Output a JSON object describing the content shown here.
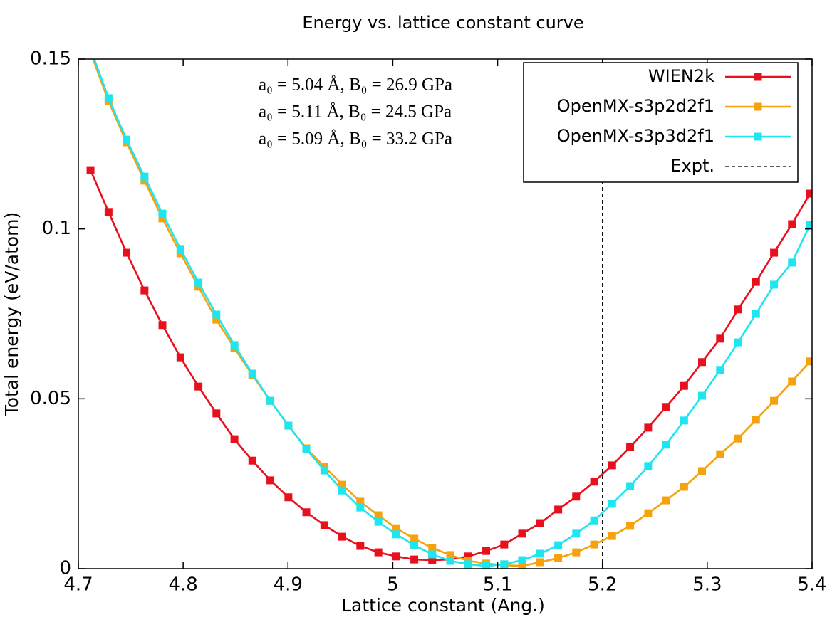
{
  "chart_data": {
    "type": "line",
    "title": "Energy vs. lattice constant curve",
    "xlabel": "Lattice constant (Ang.)",
    "ylabel": "Total energy (eV/atom)",
    "xlim": [
      4.7,
      5.4
    ],
    "ylim": [
      0,
      0.15
    ],
    "xticks": [
      4.7,
      4.8,
      4.9,
      5,
      5.1,
      5.2,
      5.3,
      5.4
    ],
    "yticks": [
      0,
      0.05,
      0.1,
      0.15
    ],
    "legend": "top right",
    "annotations": [
      "a₀ = 5.04 Å, B₀ = 26.9 GPa",
      "a₀ = 5.11 Å, B₀ = 24.5 GPa",
      "a₀ = 5.09 Å, B₀ = 33.2 GPa"
    ],
    "x": [
      4.7116,
      4.7288,
      4.7459,
      4.7631,
      4.7802,
      4.7974,
      4.8146,
      4.8317,
      4.8489,
      4.866,
      4.8832,
      4.9004,
      4.9175,
      4.9347,
      4.9518,
      4.969,
      4.9862,
      5.0033,
      5.0205,
      5.0376,
      5.0548,
      5.072,
      5.0891,
      5.1063,
      5.1234,
      5.1406,
      5.1578,
      5.1749,
      5.1921,
      5.2092,
      5.2264,
      5.2436,
      5.2607,
      5.2779,
      5.295,
      5.3122,
      5.3294,
      5.3465,
      5.3637,
      5.3808,
      5.398
    ],
    "series": [
      {
        "name": "WIEN2k",
        "color": "#e8101c",
        "values": [
          0.1173,
          0.105,
          0.093,
          0.0819,
          0.0717,
          0.0622,
          0.0536,
          0.0457,
          0.0381,
          0.0318,
          0.026,
          0.021,
          0.0166,
          0.0128,
          0.0094,
          0.0067,
          0.0048,
          0.0036,
          0.0027,
          0.0025,
          0.0027,
          0.0036,
          0.0052,
          0.0071,
          0.0103,
          0.0134,
          0.0174,
          0.0212,
          0.0256,
          0.0304,
          0.0358,
          0.0415,
          0.0476,
          0.0538,
          0.0608,
          0.0677,
          0.0763,
          0.0844,
          0.093,
          0.1014,
          0.1104
        ]
      },
      {
        "name": "OpenMX-s3p2d2f1",
        "color": "#f5a20c",
        "values": [
          0.152,
          0.1376,
          0.1255,
          0.1142,
          0.1031,
          0.0928,
          0.083,
          0.0733,
          0.0649,
          0.057,
          0.0494,
          0.0421,
          0.0354,
          0.03,
          0.0247,
          0.0197,
          0.0157,
          0.0119,
          0.0088,
          0.0061,
          0.004,
          0.0023,
          0.0015,
          0.001,
          0.0008,
          0.0019,
          0.0031,
          0.0048,
          0.0071,
          0.0096,
          0.0126,
          0.0163,
          0.0201,
          0.0241,
          0.0287,
          0.0337,
          0.0383,
          0.0438,
          0.0494,
          0.0551,
          0.061
        ]
      },
      {
        "name": "OpenMX-s3p3d2f1",
        "color": "#1ee6f0",
        "values": [
          0.153,
          0.1385,
          0.1263,
          0.1154,
          0.1045,
          0.0941,
          0.0842,
          0.0748,
          0.0658,
          0.0574,
          0.0494,
          0.0421,
          0.0352,
          0.0289,
          0.023,
          0.018,
          0.0138,
          0.0101,
          0.0069,
          0.0042,
          0.0023,
          0.0013,
          0.0008,
          0.0013,
          0.0025,
          0.0044,
          0.0069,
          0.0103,
          0.0142,
          0.0191,
          0.0243,
          0.0302,
          0.0365,
          0.0436,
          0.0509,
          0.0585,
          0.0666,
          0.075,
          0.0836,
          0.0901,
          0.1012
        ]
      }
    ],
    "vlines": [
      {
        "name": "Expt.",
        "x": 5.2,
        "color": "#000000"
      }
    ]
  }
}
